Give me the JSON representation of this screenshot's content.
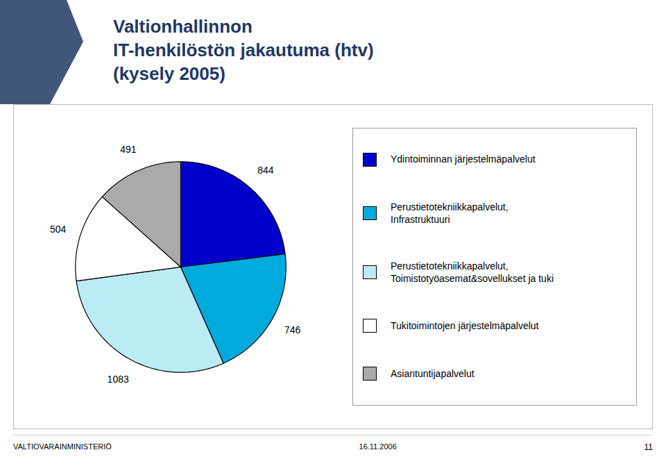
{
  "chart_data": {
    "type": "pie",
    "title": "Valtionhallinnon\nIT-henkilöstön jakautuma (htv)\n(kysely 2005)",
    "categories": [
      "Ydintoiminnan järjestelmäpalvelut",
      "Perustietotekniikkapalvelut,\nInfrastruktuuri",
      "Perustietotekniikkapalvelut,\nToimistotyöasemat&sovellukset ja tuki",
      "Tukitoimintojen järjestelmäpalvelut",
      "Asiantuntijapalvelut"
    ],
    "values": [
      844,
      746,
      1083,
      504,
      491
    ],
    "colors": [
      "#0000CC",
      "#00AADD",
      "#BBECF5",
      "#FFFFFF",
      "#AAAAAA"
    ],
    "data_labels": true,
    "legend": "right",
    "annotations": [
      "VALTIOVARAINMINISTERIÖ",
      "16.11.2006",
      "11"
    ]
  }
}
